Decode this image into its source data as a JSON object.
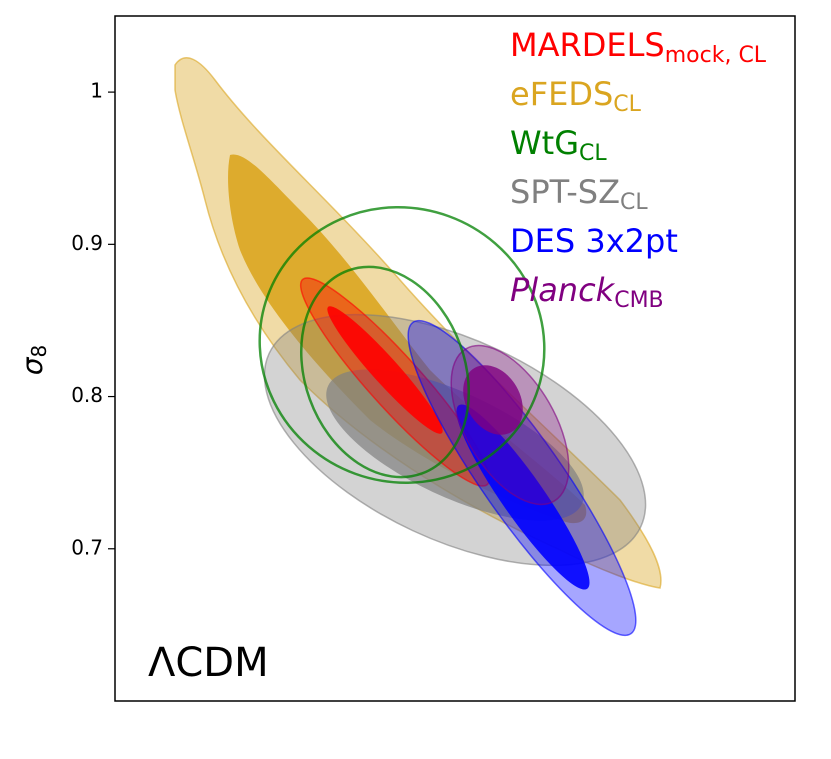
{
  "chart_data": {
    "type": "contour",
    "ylabel": "σ",
    "ylabel_subscript": "8",
    "annotation": "ΛCDM",
    "ylim": [
      0.6,
      1.05
    ],
    "yticks": [
      0.7,
      0.8,
      0.9,
      1.0
    ],
    "legend": "upper right",
    "series": [
      {
        "name": "MARDELS",
        "subscript": "mock, CL",
        "color": "#ff0000"
      },
      {
        "name": "eFEDS",
        "subscript": "CL",
        "color": "#daa520"
      },
      {
        "name": "WtG",
        "subscript": "CL",
        "color": "#008000"
      },
      {
        "name": "SPT-SZ",
        "subscript": "CL",
        "color": "#808080"
      },
      {
        "name": "DES 3x2pt",
        "subscript": "",
        "color": "#0000ff"
      },
      {
        "name": "Planck",
        "subscript": "CMB",
        "color": "#800080",
        "italic": true
      }
    ]
  }
}
